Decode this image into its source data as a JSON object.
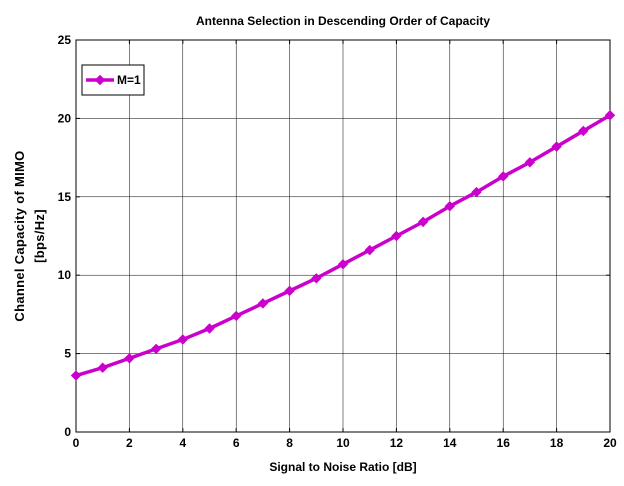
{
  "chart_data": {
    "type": "line",
    "title": "Antenna Selection in Descending Order of Capacity",
    "xlabel": "Signal to Noise Ratio [dB]",
    "ylabel_lines": [
      "Channel Capacity of MIMO",
      "[bps/Hz]"
    ],
    "xlim": [
      0,
      20
    ],
    "ylim": [
      0,
      25
    ],
    "xticks": [
      "0",
      "2",
      "4",
      "6",
      "8",
      "10",
      "12",
      "14",
      "16",
      "18",
      "20"
    ],
    "yticks": [
      "0",
      "5",
      "10",
      "15",
      "20",
      "25"
    ],
    "grid": true,
    "legend_position": "top-left",
    "series": [
      {
        "name": "M=1",
        "color": "#cc00cc",
        "marker": "diamond",
        "x": [
          0,
          1,
          2,
          3,
          4,
          5,
          6,
          7,
          8,
          9,
          10,
          11,
          12,
          13,
          14,
          15,
          16,
          17,
          18,
          19,
          20
        ],
        "y": [
          3.6,
          4.1,
          4.7,
          5.3,
          5.9,
          6.6,
          7.4,
          8.2,
          9.0,
          9.8,
          10.7,
          11.6,
          12.5,
          13.4,
          14.4,
          15.3,
          16.3,
          17.2,
          18.2,
          19.2,
          20.2
        ]
      }
    ]
  }
}
